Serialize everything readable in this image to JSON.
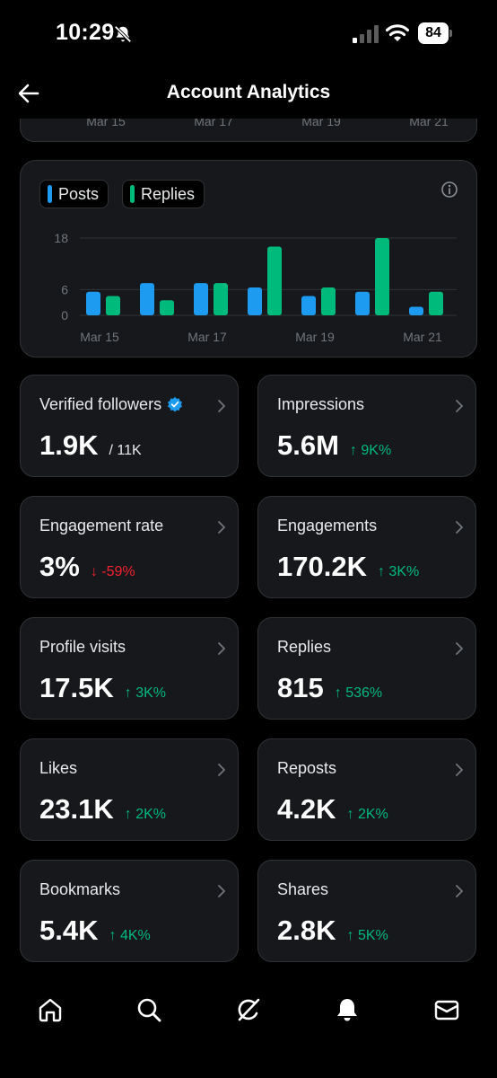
{
  "status_bar": {
    "time": "10:29",
    "battery": "84"
  },
  "header": {
    "title": "Account Analytics"
  },
  "top_chart_ticks": [
    "Mar 15",
    "Mar 17",
    "Mar 19",
    "Mar 21"
  ],
  "legend": [
    {
      "name": "Posts",
      "color": "#1d9bf0"
    },
    {
      "name": "Replies",
      "color": "#00ba7c"
    }
  ],
  "chart_data": {
    "type": "bar",
    "categories": [
      "Mar 15",
      "Mar 16",
      "Mar 17",
      "Mar 18",
      "Mar 19",
      "Mar 20",
      "Mar 21"
    ],
    "x_tick_labels": [
      "Mar 15",
      "Mar 17",
      "Mar 19",
      "Mar 21"
    ],
    "y_tick_labels": [
      "18",
      "6",
      "0"
    ],
    "ylim": [
      0,
      18
    ],
    "series": [
      {
        "name": "Posts",
        "color": "#1d9bf0",
        "values": [
          5.5,
          7.5,
          7.5,
          6.5,
          4.5,
          5.5,
          2
        ]
      },
      {
        "name": "Replies",
        "color": "#00ba7c",
        "values": [
          4.5,
          3.5,
          7.5,
          16,
          6.5,
          18,
          5.5
        ]
      }
    ],
    "title": "",
    "xlabel": "",
    "ylabel": "",
    "grid": true,
    "legend_position": "top-left"
  },
  "stats": [
    {
      "label": "Verified followers",
      "value": "1.9K",
      "sub": "/ 11K",
      "delta": "",
      "direction": "",
      "verified": true
    },
    {
      "label": "Impressions",
      "value": "5.6M",
      "delta": "9K%",
      "direction": "up"
    },
    {
      "label": "Engagement rate",
      "value": "3%",
      "delta": "-59%",
      "direction": "down"
    },
    {
      "label": "Engagements",
      "value": "170.2K",
      "delta": "3K%",
      "direction": "up"
    },
    {
      "label": "Profile visits",
      "value": "17.5K",
      "delta": "3K%",
      "direction": "up"
    },
    {
      "label": "Replies",
      "value": "815",
      "delta": "536%",
      "direction": "up"
    },
    {
      "label": "Likes",
      "value": "23.1K",
      "delta": "2K%",
      "direction": "up"
    },
    {
      "label": "Reposts",
      "value": "4.2K",
      "delta": "2K%",
      "direction": "up"
    },
    {
      "label": "Bookmarks",
      "value": "5.4K",
      "delta": "4K%",
      "direction": "up"
    },
    {
      "label": "Shares",
      "value": "2.8K",
      "delta": "5K%",
      "direction": "up"
    }
  ],
  "arrows": {
    "up": "↑",
    "down": "↓"
  },
  "bottom_nav": [
    "home-icon",
    "search-icon",
    "grok-icon",
    "notifications-icon",
    "messages-icon"
  ]
}
